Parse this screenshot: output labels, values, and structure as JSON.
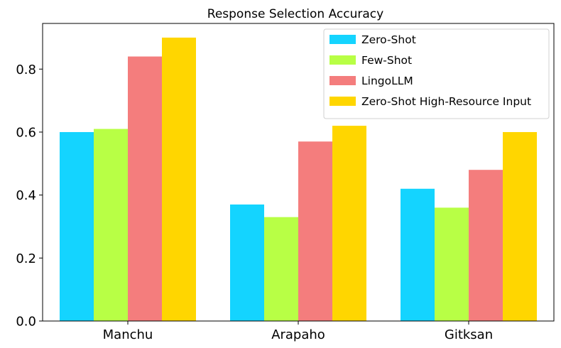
{
  "chart_data": {
    "type": "bar",
    "title": "Response Selection Accuracy",
    "xlabel": "",
    "ylabel": "",
    "categories": [
      "Manchu",
      "Arapaho",
      "Gitksan"
    ],
    "series": [
      {
        "name": "Zero-Shot",
        "color": "#14d4ff",
        "values": [
          0.6,
          0.37,
          0.42
        ]
      },
      {
        "name": "Few-Shot",
        "color": "#b8ff45",
        "values": [
          0.61,
          0.33,
          0.36
        ]
      },
      {
        "name": "LingoLLM",
        "color": "#f47d7d",
        "values": [
          0.84,
          0.57,
          0.48
        ]
      },
      {
        "name": "Zero-Shot High-Resource Input",
        "color": "#ffd600",
        "values": [
          0.9,
          0.62,
          0.6
        ]
      }
    ],
    "ylim": [
      0,
      0.945
    ],
    "yticks": [
      0.0,
      0.2,
      0.4,
      0.6,
      0.8
    ],
    "ytick_labels": [
      "0.0",
      "0.2",
      "0.4",
      "0.6",
      "0.8"
    ],
    "grid": false,
    "legend_position": "top-right"
  }
}
